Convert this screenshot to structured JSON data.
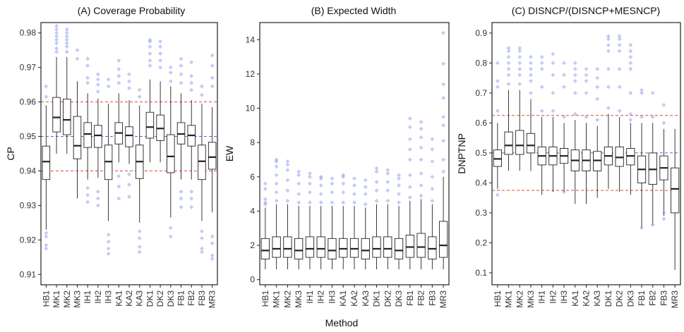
{
  "x_label": "Method",
  "colors": {
    "outlier": "#7b8fe8",
    "red_ref": "#e0483a",
    "blue_ref": "#4a6fd1",
    "box_stroke": "#222222"
  },
  "chart_data": [
    {
      "type": "boxplot",
      "id": "A",
      "title": "(A) Coverage Probability",
      "xlabel": "Method",
      "ylabel": "CP",
      "ylim": [
        0.907,
        0.983
      ],
      "yticks": [
        0.91,
        0.92,
        0.93,
        0.94,
        0.95,
        0.96,
        0.97,
        0.98
      ],
      "ytick_labels": [
        "0.91",
        "0.92",
        "0.93",
        "0.94",
        "0.95",
        "0.96",
        "0.97",
        "0.98"
      ],
      "reference_lines": [
        {
          "y": 0.96,
          "color": "red"
        },
        {
          "y": 0.95,
          "color": "blue"
        },
        {
          "y": 0.94,
          "color": "red"
        }
      ],
      "categories": [
        "HB1",
        "MK1",
        "MK2",
        "MK3",
        "IH1",
        "IH2",
        "IH3",
        "KA1",
        "KA2",
        "KA3",
        "DK1",
        "DK2",
        "DK3",
        "FB1",
        "FB2",
        "FB3",
        "MR3"
      ],
      "boxes": [
        {
          "low": 0.923,
          "q1": 0.9375,
          "median": 0.9427,
          "q3": 0.9472,
          "high": 0.959,
          "outliers": [
            0.9175,
            0.9185,
            0.921,
            0.922,
            0.9615,
            0.9645
          ]
        },
        {
          "low": 0.945,
          "q1": 0.9513,
          "median": 0.9555,
          "q3": 0.9613,
          "high": 0.973,
          "outliers": [
            0.9745,
            0.9755,
            0.977,
            0.978,
            0.979,
            0.98,
            0.981,
            0.982
          ]
        },
        {
          "low": 0.945,
          "q1": 0.9505,
          "median": 0.9548,
          "q3": 0.9608,
          "high": 0.973,
          "outliers": [
            0.9745,
            0.976,
            0.977,
            0.978,
            0.979,
            0.98,
            0.981
          ]
        },
        {
          "low": 0.932,
          "q1": 0.9435,
          "median": 0.9473,
          "q3": 0.9558,
          "high": 0.966,
          "outliers": [
            0.9725,
            0.975
          ]
        },
        {
          "low": 0.9375,
          "q1": 0.9468,
          "median": 0.9507,
          "q3": 0.954,
          "high": 0.9625,
          "outliers": [
            0.931,
            0.933,
            0.935,
            0.9655,
            0.967,
            0.9705,
            0.9725
          ]
        },
        {
          "low": 0.938,
          "q1": 0.9468,
          "median": 0.9503,
          "q3": 0.9532,
          "high": 0.961,
          "outliers": [
            0.93,
            0.932,
            0.934,
            0.963,
            0.965,
            0.9665,
            0.968
          ]
        },
        {
          "low": 0.9255,
          "q1": 0.9375,
          "median": 0.9427,
          "q3": 0.9475,
          "high": 0.9595,
          "outliers": [
            0.916,
            0.9175,
            0.9195,
            0.9215,
            0.9645,
            0.9665
          ]
        },
        {
          "low": 0.9425,
          "q1": 0.9478,
          "median": 0.951,
          "q3": 0.954,
          "high": 0.9625,
          "outliers": [
            0.932,
            0.9355,
            0.9385,
            0.9655,
            0.9675,
            0.9695,
            0.972
          ]
        },
        {
          "low": 0.942,
          "q1": 0.947,
          "median": 0.9503,
          "q3": 0.9528,
          "high": 0.9605,
          "outliers": [
            0.9325,
            0.936,
            0.939,
            0.964,
            0.966,
            0.968
          ]
        },
        {
          "low": 0.925,
          "q1": 0.9378,
          "median": 0.9427,
          "q3": 0.9475,
          "high": 0.959,
          "outliers": [
            0.9165,
            0.918,
            0.9205,
            0.9225,
            0.9615,
            0.9635
          ]
        },
        {
          "low": 0.9425,
          "q1": 0.9495,
          "median": 0.9527,
          "q3": 0.957,
          "high": 0.9665,
          "outliers": [
            0.9705,
            0.972,
            0.974,
            0.976,
            0.9775,
            0.978
          ]
        },
        {
          "low": 0.9425,
          "q1": 0.9488,
          "median": 0.9523,
          "q3": 0.9562,
          "high": 0.966,
          "outliers": [
            0.97,
            0.972,
            0.974,
            0.976,
            0.9775
          ]
        },
        {
          "low": 0.9265,
          "q1": 0.9395,
          "median": 0.9442,
          "q3": 0.9505,
          "high": 0.9645,
          "outliers": [
            0.921,
            0.9235,
            0.966,
            0.9685,
            0.97
          ]
        },
        {
          "low": 0.9375,
          "q1": 0.9478,
          "median": 0.9507,
          "q3": 0.954,
          "high": 0.9625,
          "outliers": [
            0.9295,
            0.932,
            0.934,
            0.9655,
            0.968,
            0.9705,
            0.9725
          ]
        },
        {
          "low": 0.9375,
          "q1": 0.9472,
          "median": 0.9503,
          "q3": 0.9532,
          "high": 0.9605,
          "outliers": [
            0.9295,
            0.932,
            0.934,
            0.9635,
            0.9655,
            0.9675,
            0.9715
          ]
        },
        {
          "low": 0.9255,
          "q1": 0.9375,
          "median": 0.9428,
          "q3": 0.9475,
          "high": 0.9595,
          "outliers": [
            0.9165,
            0.9175,
            0.9205,
            0.9225,
            0.962,
            0.9645
          ]
        },
        {
          "low": 0.928,
          "q1": 0.9405,
          "median": 0.944,
          "q3": 0.9483,
          "high": 0.9585,
          "outliers": [
            0.9145,
            0.9155,
            0.919,
            0.921,
            0.9645,
            0.967,
            0.9705,
            0.9735
          ]
        }
      ]
    },
    {
      "type": "boxplot",
      "id": "B",
      "title": "(B) Expected Width",
      "xlabel": "Method",
      "ylabel": "EW",
      "ylim": [
        -0.3,
        15.0
      ],
      "yticks": [
        0,
        2,
        4,
        6,
        8,
        10,
        12,
        14
      ],
      "ytick_labels": [
        "0",
        "2",
        "4",
        "6",
        "8",
        "10",
        "12",
        "14"
      ],
      "reference_lines": [],
      "categories": [
        "HB1",
        "MK1",
        "MK2",
        "MK3",
        "IH1",
        "IH2",
        "IH3",
        "KA1",
        "KA2",
        "KA3",
        "DK1",
        "DK2",
        "DK3",
        "FB1",
        "FB2",
        "FB3",
        "MR3"
      ],
      "boxes": [
        {
          "low": 0.6,
          "q1": 1.2,
          "median": 1.7,
          "q3": 2.4,
          "high": 4.2,
          "outliers": [
            4.4,
            4.5,
            4.7,
            5.3,
            5.6
          ]
        },
        {
          "low": 0.6,
          "q1": 1.3,
          "median": 1.8,
          "q3": 2.5,
          "high": 4.4,
          "outliers": [
            4.6,
            5.1,
            5.6,
            6.1,
            6.6,
            6.9,
            7.0
          ]
        },
        {
          "low": 0.6,
          "q1": 1.3,
          "median": 1.8,
          "q3": 2.5,
          "high": 4.4,
          "outliers": [
            4.6,
            5.2,
            5.8,
            6.4,
            6.7,
            6.9
          ]
        },
        {
          "low": 0.6,
          "q1": 1.2,
          "median": 1.7,
          "q3": 2.4,
          "high": 4.3,
          "outliers": [
            4.5,
            5.0,
            5.6,
            6.1,
            6.3
          ]
        },
        {
          "low": 0.6,
          "q1": 1.3,
          "median": 1.8,
          "q3": 2.5,
          "high": 4.3,
          "outliers": [
            4.5,
            5.1,
            5.6,
            6.0,
            6.2
          ]
        },
        {
          "low": 0.6,
          "q1": 1.3,
          "median": 1.8,
          "q3": 2.5,
          "high": 4.3,
          "outliers": [
            4.5,
            5.0,
            5.5,
            5.9,
            6.0
          ]
        },
        {
          "low": 0.6,
          "q1": 1.2,
          "median": 1.7,
          "q3": 2.4,
          "high": 4.3,
          "outliers": [
            4.5,
            5.1,
            5.6,
            5.9
          ]
        },
        {
          "low": 0.6,
          "q1": 1.3,
          "median": 1.8,
          "q3": 2.4,
          "high": 4.3,
          "outliers": [
            4.5,
            5.1,
            5.6,
            6.0,
            6.1
          ]
        },
        {
          "low": 0.6,
          "q1": 1.3,
          "median": 1.8,
          "q3": 2.4,
          "high": 4.3,
          "outliers": [
            4.5,
            5.0,
            5.5,
            5.9
          ]
        },
        {
          "low": 0.6,
          "q1": 1.2,
          "median": 1.7,
          "q3": 2.4,
          "high": 4.2,
          "outliers": [
            4.4,
            5.0,
            5.4,
            5.8
          ]
        },
        {
          "low": 0.6,
          "q1": 1.3,
          "median": 1.8,
          "q3": 2.5,
          "high": 4.4,
          "outliers": [
            4.6,
            5.2,
            5.7,
            6.3,
            6.5
          ]
        },
        {
          "low": 0.6,
          "q1": 1.3,
          "median": 1.8,
          "q3": 2.5,
          "high": 4.4,
          "outliers": [
            4.6,
            5.2,
            5.7,
            6.2,
            6.4
          ]
        },
        {
          "low": 0.6,
          "q1": 1.2,
          "median": 1.7,
          "q3": 2.4,
          "high": 4.3,
          "outliers": [
            4.5,
            5.0,
            5.5,
            5.9,
            6.1
          ]
        },
        {
          "low": 0.6,
          "q1": 1.3,
          "median": 1.9,
          "q3": 2.6,
          "high": 4.6,
          "outliers": [
            4.8,
            5.4,
            6.1,
            7.0,
            7.6,
            8.2,
            8.9,
            9.4
          ]
        },
        {
          "low": 0.6,
          "q1": 1.3,
          "median": 1.9,
          "q3": 2.7,
          "high": 4.7,
          "outliers": [
            4.9,
            5.5,
            6.2,
            7.0,
            7.7,
            8.3,
            8.8,
            9.2
          ]
        },
        {
          "low": 0.6,
          "q1": 1.2,
          "median": 1.8,
          "q3": 2.5,
          "high": 4.4,
          "outliers": [
            4.6,
            5.3,
            6.0,
            6.9,
            7.6,
            8.2
          ]
        },
        {
          "low": 0.6,
          "q1": 1.3,
          "median": 2.0,
          "q3": 3.4,
          "high": 6.0,
          "outliers": [
            6.3,
            7.0,
            8.1,
            9.0,
            9.5,
            10.6,
            11.4,
            12.6,
            14.4
          ]
        }
      ]
    },
    {
      "type": "boxplot",
      "id": "C",
      "title": "(C) DISNCP/(DISNCP+MESNCP)",
      "xlabel": "Method",
      "ylabel": "DNPTNP",
      "ylim": [
        0.06,
        0.935
      ],
      "yticks": [
        0.1,
        0.2,
        0.3,
        0.4,
        0.5,
        0.6,
        0.7,
        0.8,
        0.9
      ],
      "ytick_labels": [
        "0.1",
        "0.2",
        "0.3",
        "0.4",
        "0.5",
        "0.6",
        "0.7",
        "0.8",
        "0.9"
      ],
      "reference_lines": [
        {
          "y": 0.625,
          "color": "red"
        },
        {
          "y": 0.5,
          "color": "blue"
        },
        {
          "y": 0.375,
          "color": "red"
        }
      ],
      "categories": [
        "HB1",
        "MK1",
        "MK2",
        "MK3",
        "IH1",
        "IH2",
        "IH3",
        "KA1",
        "KA2",
        "KA3",
        "DK1",
        "DK2",
        "DK3",
        "FB1",
        "FB2",
        "FB3",
        "MR3"
      ],
      "boxes": [
        {
          "low": 0.38,
          "q1": 0.455,
          "median": 0.48,
          "q3": 0.51,
          "high": 0.6,
          "outliers": [
            0.36,
            0.64,
            0.72,
            0.74,
            0.8
          ]
        },
        {
          "low": 0.44,
          "q1": 0.495,
          "median": 0.525,
          "q3": 0.57,
          "high": 0.71,
          "outliers": [
            0.73,
            0.76,
            0.78,
            0.8,
            0.82,
            0.84,
            0.85
          ]
        },
        {
          "low": 0.44,
          "q1": 0.495,
          "median": 0.525,
          "q3": 0.575,
          "high": 0.71,
          "outliers": [
            0.73,
            0.76,
            0.78,
            0.8,
            0.82,
            0.84,
            0.85
          ]
        },
        {
          "low": 0.44,
          "q1": 0.5,
          "median": 0.525,
          "q3": 0.565,
          "high": 0.68,
          "outliers": [
            0.7,
            0.74,
            0.76,
            0.78,
            0.8,
            0.82
          ]
        },
        {
          "low": 0.36,
          "q1": 0.46,
          "median": 0.49,
          "q3": 0.52,
          "high": 0.62,
          "outliers": [
            0.64,
            0.72,
            0.78,
            0.8,
            0.82
          ]
        },
        {
          "low": 0.37,
          "q1": 0.46,
          "median": 0.49,
          "q3": 0.52,
          "high": 0.62,
          "outliers": [
            0.64,
            0.7,
            0.76,
            0.8,
            0.83
          ]
        },
        {
          "low": 0.37,
          "q1": 0.465,
          "median": 0.49,
          "q3": 0.515,
          "high": 0.6,
          "outliers": [
            0.37,
            0.62,
            0.72,
            0.76,
            0.8
          ]
        },
        {
          "low": 0.33,
          "q1": 0.44,
          "median": 0.475,
          "q3": 0.51,
          "high": 0.61,
          "outliers": [
            0.63,
            0.7,
            0.74,
            0.76,
            0.78,
            0.8
          ]
        },
        {
          "low": 0.33,
          "q1": 0.44,
          "median": 0.475,
          "q3": 0.51,
          "high": 0.6,
          "outliers": [
            0.62,
            0.7,
            0.74,
            0.76,
            0.78
          ]
        },
        {
          "low": 0.35,
          "q1": 0.44,
          "median": 0.475,
          "q3": 0.505,
          "high": 0.59,
          "outliers": [
            0.61,
            0.68,
            0.72,
            0.75,
            0.78
          ]
        },
        {
          "low": 0.38,
          "q1": 0.46,
          "median": 0.49,
          "q3": 0.52,
          "high": 0.63,
          "outliers": [
            0.65,
            0.72,
            0.78,
            0.84,
            0.86,
            0.88,
            0.89
          ]
        },
        {
          "low": 0.37,
          "q1": 0.455,
          "median": 0.485,
          "q3": 0.52,
          "high": 0.62,
          "outliers": [
            0.64,
            0.72,
            0.78,
            0.84,
            0.86,
            0.88,
            0.89
          ]
        },
        {
          "low": 0.36,
          "q1": 0.46,
          "median": 0.49,
          "q3": 0.515,
          "high": 0.6,
          "outliers": [
            0.61,
            0.63,
            0.7,
            0.78,
            0.8,
            0.82,
            0.84,
            0.86
          ]
        },
        {
          "low": 0.25,
          "q1": 0.4,
          "median": 0.445,
          "q3": 0.49,
          "high": 0.6,
          "outliers": [
            0.25,
            0.62,
            0.7,
            0.71
          ]
        },
        {
          "low": 0.26,
          "q1": 0.395,
          "median": 0.445,
          "q3": 0.5,
          "high": 0.6,
          "outliers": [
            0.26,
            0.62,
            0.7
          ]
        },
        {
          "low": 0.29,
          "q1": 0.41,
          "median": 0.45,
          "q3": 0.49,
          "high": 0.58,
          "outliers": [
            0.28,
            0.3,
            0.6,
            0.66
          ]
        },
        {
          "low": 0.11,
          "q1": 0.3,
          "median": 0.38,
          "q3": 0.45,
          "high": 0.58,
          "outliers": []
        }
      ]
    }
  ]
}
